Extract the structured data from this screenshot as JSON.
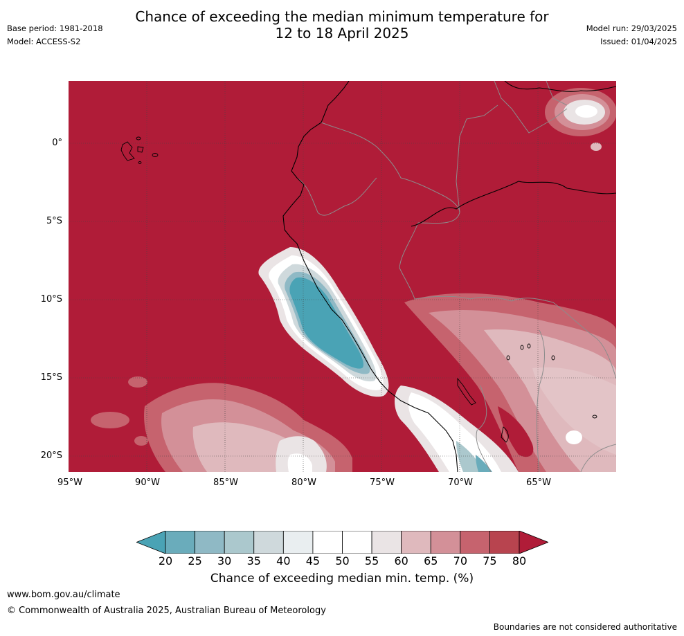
{
  "header": {
    "title_line1": "Chance of exceeding the median minimum temperature for",
    "title_line2": "12 to 18 April 2025",
    "base_period": "Base period: 1981-2018",
    "model": "Model: ACCESS-S2",
    "model_run": "Model run: 29/03/2025",
    "issued": "Issued: 01/04/2025"
  },
  "map": {
    "y_labels": [
      "0°",
      "5°S",
      "10°S",
      "15°S",
      "20°S"
    ],
    "x_labels": [
      "95°W",
      "90°W",
      "85°W",
      "80°W",
      "75°W",
      "70°W",
      "65°W"
    ]
  },
  "legend": {
    "title": "Chance of exceeding median min. temp. (%)",
    "ticks": [
      "20",
      "25",
      "30",
      "35",
      "40",
      "45",
      "50",
      "55",
      "60",
      "65",
      "70",
      "75",
      "80"
    ],
    "colors": [
      "#4aa3b5",
      "#6aacbb",
      "#8fb9c5",
      "#abc8cd",
      "#cfd9dc",
      "#e9eef0",
      "#ffffff",
      "#ffffff",
      "#eae4e5",
      "#dfb9bd",
      "#d39098",
      "#c6636e",
      "#b8444f",
      "#b01c38"
    ]
  },
  "footer": {
    "url": "www.bom.gov.au/climate",
    "copyright": "© Commonwealth of Australia 2025, Australian Bureau of Meteorology",
    "note": "Boundaries are not considered authoritative"
  }
}
